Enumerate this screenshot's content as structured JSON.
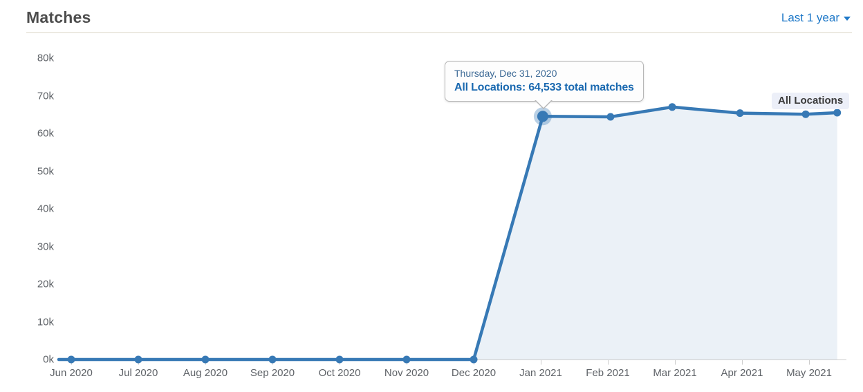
{
  "header": {
    "title": "Matches",
    "period_selector_label": "Last 1 year"
  },
  "tooltip": {
    "date": "Thursday, Dec 31, 2020",
    "value_text": "All Locations: 64,533 total matches"
  },
  "series_label": "All Locations",
  "chart_data": {
    "type": "area",
    "title": "Matches",
    "period": "Last 1 year",
    "grid": false,
    "legend_position": "series-label top-right inside plot",
    "ylim": [
      0,
      80000
    ],
    "y_tick_labels": [
      "0k",
      "10k",
      "20k",
      "30k",
      "40k",
      "50k",
      "60k",
      "70k",
      "80k"
    ],
    "x_tick_labels": [
      "Jun 2020",
      "Jul 2020",
      "Aug 2020",
      "Sep 2020",
      "Oct 2020",
      "Nov 2020",
      "Dec 2020",
      "Jan 2021",
      "Feb 2021",
      "Mar 2021",
      "Apr 2021",
      "May 2021"
    ],
    "colors": {
      "line": "#3779b5",
      "fill": "rgba(55,121,181,0.10)",
      "halo": "rgba(55,121,181,0.35)",
      "axis": "#cccccc"
    },
    "series": [
      {
        "name": "All Locations",
        "points": [
          {
            "t": 0,
            "x": "Jun 2020",
            "value": 0
          },
          {
            "t": 1,
            "x": "Jul 2020",
            "value": 0
          },
          {
            "t": 2,
            "x": "Aug 2020",
            "value": 0
          },
          {
            "t": 3,
            "x": "Sep 2020",
            "value": 0
          },
          {
            "t": 4,
            "x": "Oct 2020",
            "value": 0
          },
          {
            "t": 5,
            "x": "Nov 2020",
            "value": 0
          },
          {
            "t": 6,
            "x": "Dec 2020",
            "value": 0
          },
          {
            "t": 7.03,
            "x": "Dec 31, 2020",
            "value": 64533,
            "highlighted": true
          },
          {
            "t": 8.04,
            "x": "Jan 31, 2021",
            "value": 64400
          },
          {
            "t": 8.96,
            "x": "Feb 28, 2021",
            "value": 67000
          },
          {
            "t": 9.97,
            "x": "Mar 31, 2021",
            "value": 65400
          },
          {
            "t": 10.95,
            "x": "Apr 30, 2021",
            "value": 65100
          },
          {
            "t": 11.42,
            "x": "mid May 2021",
            "value": 65500
          }
        ]
      }
    ]
  }
}
